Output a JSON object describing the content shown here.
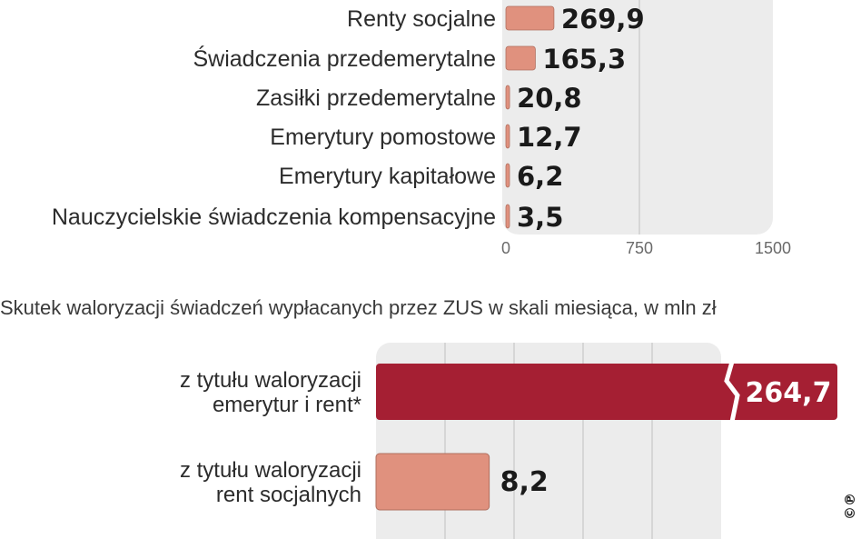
{
  "chart_data": [
    {
      "type": "bar",
      "orientation": "horizontal",
      "categories": [
        "Renty socjalne",
        "Świadczenia przedemerytalne",
        "Zasiłki przedemerytalne",
        "Emerytury pomostowe",
        "Emerytury kapitałowe",
        "Nauczycielskie świadczenia kompensacyjne"
      ],
      "values": [
        269.9,
        165.3,
        20.8,
        12.7,
        6.2,
        3.5
      ],
      "value_labels": [
        "269,9",
        "165,3",
        "20,8",
        "12,7",
        "6,2",
        "3,5"
      ],
      "xlim": [
        0,
        1500
      ],
      "xticks": [
        "0",
        "750",
        "1500"
      ],
      "bar_color": "#e0917e",
      "grid": true
    },
    {
      "type": "bar",
      "orientation": "horizontal",
      "title": "Skutek waloryzacji świadczeń wypłacanych przez ZUS w skali miesiąca, w mln zł",
      "categories": [
        [
          "z tytułu waloryzacji",
          "emerytur i rent*"
        ],
        [
          "z tytułu waloryzacji",
          "rent socjalnych"
        ]
      ],
      "values": [
        264.7,
        8.2
      ],
      "value_labels": [
        "264,7",
        "8,2"
      ],
      "broken_axis": [
        true,
        false
      ],
      "bar_colors": [
        "#a51f33",
        "#e0917e"
      ],
      "grid": true
    }
  ],
  "badge": "©℗"
}
